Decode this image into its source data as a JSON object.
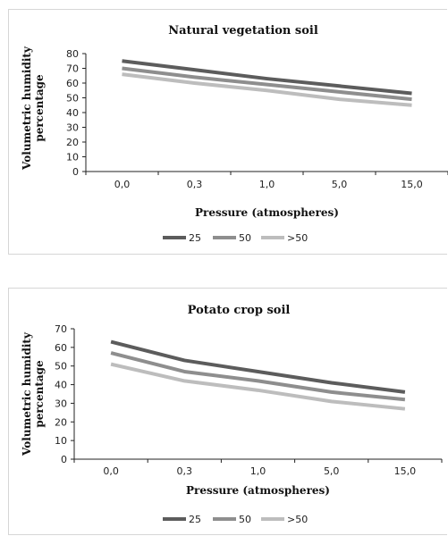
{
  "chart_data": [
    {
      "type": "line",
      "title": "Natural vegetation soil",
      "xlabel": "Pressure (atmospheres)",
      "ylabel": "Volumetric humidity percentage",
      "categories": [
        "0,0",
        "0,3",
        "1,0",
        "5,0",
        "15,0"
      ],
      "ylim": [
        0,
        80
      ],
      "yticks": [
        0,
        10,
        20,
        30,
        40,
        50,
        60,
        70,
        80
      ],
      "legend_position": "bottom",
      "grid": false,
      "series": [
        {
          "name": "25",
          "color": "#5c5c5c",
          "values": [
            75,
            69,
            63,
            58,
            53
          ]
        },
        {
          "name": "50",
          "color": "#8e8e8e",
          "values": [
            70,
            64,
            59,
            54,
            49
          ]
        },
        {
          "name": ">50",
          "color": "#bdbdbd",
          "values": [
            66,
            60,
            55,
            49,
            45
          ]
        }
      ]
    },
    {
      "type": "line",
      "title": "Potato crop soil",
      "xlabel": "Pressure (atmospheres)",
      "ylabel": "Volumetric humidity percentage",
      "categories": [
        "0,0",
        "0,3",
        "1,0",
        "5,0",
        "15,0"
      ],
      "ylim": [
        0,
        70
      ],
      "yticks": [
        0,
        10,
        20,
        30,
        40,
        50,
        60,
        70
      ],
      "legend_position": "bottom",
      "grid": false,
      "series": [
        {
          "name": "25",
          "color": "#5c5c5c",
          "values": [
            63,
            53,
            47,
            41,
            36
          ]
        },
        {
          "name": "50",
          "color": "#8e8e8e",
          "values": [
            57,
            47,
            42,
            36,
            32
          ]
        },
        {
          "name": ">50",
          "color": "#bdbdbd",
          "values": [
            51,
            42,
            37,
            31,
            27
          ]
        }
      ]
    }
  ]
}
